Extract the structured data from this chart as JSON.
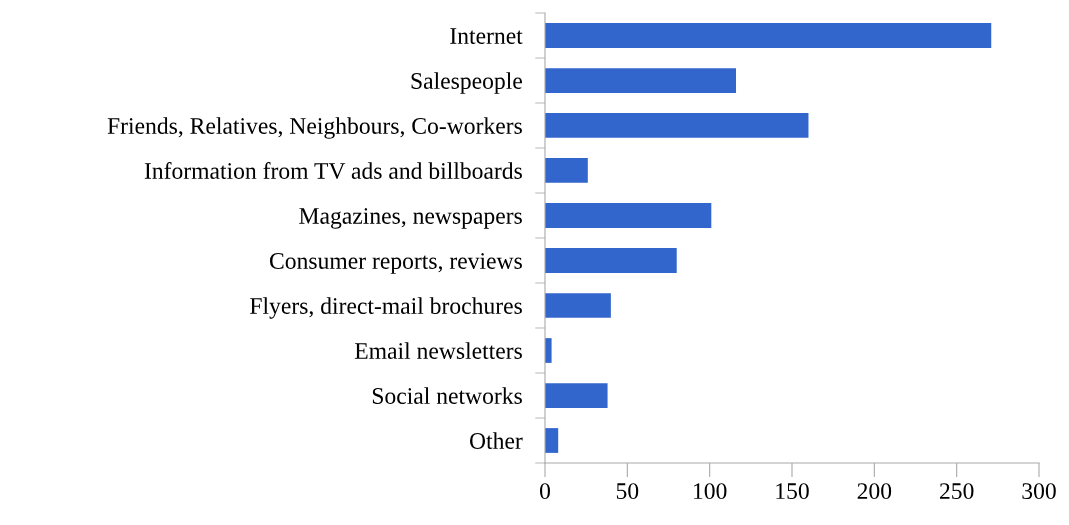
{
  "chart_data": {
    "type": "bar",
    "orientation": "horizontal",
    "categories": [
      "Internet",
      "Salespeople",
      "Friends, Relatives, Neighbours, Co-workers",
      "Information from TV ads and billboards",
      "Magazines, newspapers",
      "Consumer reports, reviews",
      "Flyers, direct-mail brochures",
      "Email newsletters",
      "Social networks",
      "Other"
    ],
    "values": [
      271,
      116,
      160,
      26,
      101,
      80,
      40,
      4,
      38,
      8
    ],
    "color": "#3366cc",
    "xlim": [
      0,
      300
    ],
    "xticks": [
      0,
      50,
      100,
      150,
      200,
      250,
      300
    ],
    "grid": false,
    "legend": false
  }
}
